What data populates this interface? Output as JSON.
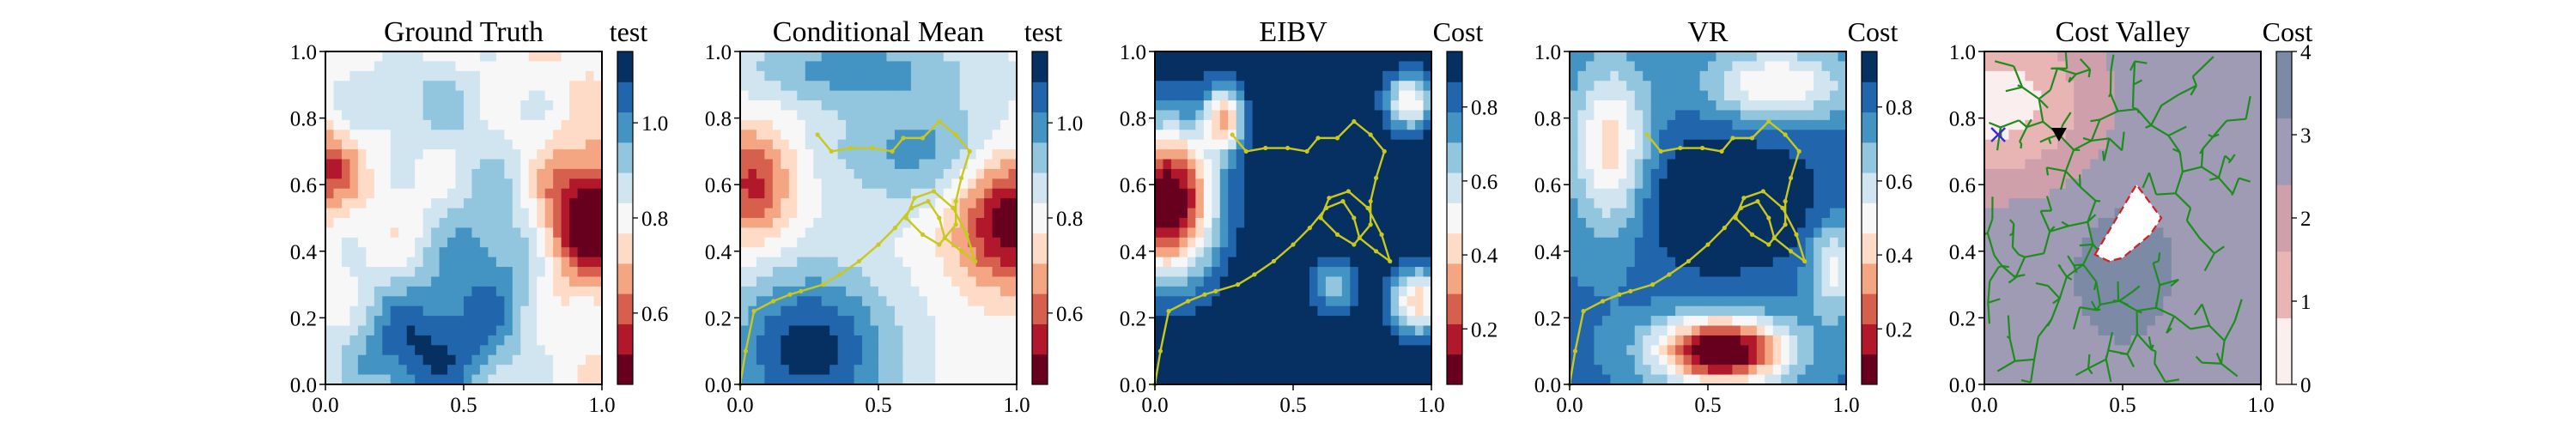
{
  "panels": [
    {
      "title": "Ground Truth",
      "cbar_label": "test",
      "cbar_ticks": [
        "0.6",
        "0.8",
        "1.0"
      ],
      "palette": [
        "#67001f",
        "#b2182b",
        "#d6604d",
        "#f4a582",
        "#fddbc7",
        "#f7f7f7",
        "#d1e5f0",
        "#92c5de",
        "#4393c3",
        "#2166ac",
        "#053061"
      ],
      "overlay": "none"
    },
    {
      "title": "Conditional Mean",
      "cbar_label": "test",
      "cbar_ticks": [
        "0.6",
        "0.8",
        "1.0"
      ],
      "palette": [
        "#67001f",
        "#b2182b",
        "#d6604d",
        "#f4a582",
        "#fddbc7",
        "#f7f7f7",
        "#d1e5f0",
        "#92c5de",
        "#4393c3",
        "#2166ac",
        "#053061"
      ],
      "overlay": "path"
    },
    {
      "title": "EIBV",
      "cbar_label": "Cost",
      "cbar_ticks": [
        "0.2",
        "0.4",
        "0.6",
        "0.8"
      ],
      "palette": [
        "#67001f",
        "#b2182b",
        "#d6604d",
        "#f4a582",
        "#fddbc7",
        "#f7f7f7",
        "#d1e5f0",
        "#92c5de",
        "#4393c3",
        "#2166ac",
        "#053061"
      ],
      "overlay": "path"
    },
    {
      "title": "VR",
      "cbar_label": "Cost",
      "cbar_ticks": [
        "0.2",
        "0.4",
        "0.6",
        "0.8"
      ],
      "palette": [
        "#67001f",
        "#b2182b",
        "#d6604d",
        "#f4a582",
        "#fddbc7",
        "#f7f7f7",
        "#d1e5f0",
        "#92c5de",
        "#4393c3",
        "#2166ac",
        "#053061"
      ],
      "overlay": "path"
    },
    {
      "title": "Cost Valley",
      "cbar_label": "Cost",
      "cbar_ticks": [
        "0",
        "1",
        "2",
        "3",
        "4"
      ],
      "palette": [
        "#fbeeee",
        "#e8b4b4",
        "#cfa0ab",
        "#a09bb4",
        "#7d8aa6"
      ],
      "overlay": "rrt"
    }
  ],
  "axes": {
    "x_ticks": [
      "0.0",
      "0.5",
      "1.0"
    ],
    "y_ticks": [
      "0.0",
      "0.2",
      "0.4",
      "0.6",
      "0.8",
      "1.0"
    ],
    "xlim": [
      0,
      1
    ],
    "ylim": [
      0,
      1
    ]
  },
  "chart_data": [
    {
      "type": "heatmap",
      "title": "Ground Truth",
      "colorbar_label": "test",
      "colorbar_range": [
        0.45,
        1.15
      ],
      "colorbar_ticks": [
        0.6,
        0.8,
        1.0
      ],
      "xlim": [
        0,
        1
      ],
      "ylim": [
        0,
        1
      ]
    },
    {
      "type": "heatmap",
      "title": "Conditional Mean",
      "colorbar_label": "test",
      "colorbar_range": [
        0.45,
        1.15
      ],
      "colorbar_ticks": [
        0.6,
        0.8,
        1.0
      ],
      "xlim": [
        0,
        1
      ],
      "ylim": [
        0,
        1
      ],
      "path_color": "#c8c81e",
      "path": [
        [
          0.0,
          0.0
        ],
        [
          0.02,
          0.1
        ],
        [
          0.05,
          0.22
        ],
        [
          0.12,
          0.25
        ],
        [
          0.18,
          0.27
        ],
        [
          0.22,
          0.28
        ],
        [
          0.3,
          0.3
        ],
        [
          0.36,
          0.33
        ],
        [
          0.43,
          0.37
        ],
        [
          0.5,
          0.42
        ],
        [
          0.56,
          0.47
        ],
        [
          0.62,
          0.53
        ],
        [
          0.68,
          0.55
        ],
        [
          0.72,
          0.5
        ],
        [
          0.74,
          0.44
        ],
        [
          0.8,
          0.4
        ],
        [
          0.85,
          0.37
        ],
        [
          0.82,
          0.45
        ],
        [
          0.77,
          0.53
        ],
        [
          0.7,
          0.58
        ],
        [
          0.63,
          0.56
        ],
        [
          0.6,
          0.5
        ],
        [
          0.66,
          0.45
        ],
        [
          0.72,
          0.42
        ],
        [
          0.78,
          0.48
        ],
        [
          0.78,
          0.55
        ],
        [
          0.8,
          0.62
        ],
        [
          0.83,
          0.7
        ],
        [
          0.78,
          0.75
        ],
        [
          0.72,
          0.79
        ],
        [
          0.66,
          0.74
        ],
        [
          0.59,
          0.74
        ],
        [
          0.55,
          0.7
        ],
        [
          0.48,
          0.71
        ],
        [
          0.4,
          0.71
        ],
        [
          0.33,
          0.7
        ],
        [
          0.28,
          0.75
        ]
      ]
    },
    {
      "type": "heatmap",
      "title": "EIBV",
      "colorbar_label": "Cost",
      "colorbar_range": [
        0.05,
        0.95
      ],
      "colorbar_ticks": [
        0.2,
        0.4,
        0.6,
        0.8
      ],
      "xlim": [
        0,
        1
      ],
      "ylim": [
        0,
        1
      ],
      "path_color": "#c8c81e",
      "path": [
        [
          0.0,
          0.0
        ],
        [
          0.02,
          0.1
        ],
        [
          0.05,
          0.22
        ],
        [
          0.12,
          0.25
        ],
        [
          0.18,
          0.27
        ],
        [
          0.22,
          0.28
        ],
        [
          0.3,
          0.3
        ],
        [
          0.36,
          0.33
        ],
        [
          0.43,
          0.37
        ],
        [
          0.5,
          0.42
        ],
        [
          0.56,
          0.47
        ],
        [
          0.62,
          0.53
        ],
        [
          0.68,
          0.55
        ],
        [
          0.72,
          0.5
        ],
        [
          0.74,
          0.44
        ],
        [
          0.8,
          0.4
        ],
        [
          0.85,
          0.37
        ],
        [
          0.82,
          0.45
        ],
        [
          0.77,
          0.53
        ],
        [
          0.7,
          0.58
        ],
        [
          0.63,
          0.56
        ],
        [
          0.6,
          0.5
        ],
        [
          0.66,
          0.45
        ],
        [
          0.72,
          0.42
        ],
        [
          0.78,
          0.48
        ],
        [
          0.78,
          0.55
        ],
        [
          0.8,
          0.62
        ],
        [
          0.83,
          0.7
        ],
        [
          0.78,
          0.75
        ],
        [
          0.72,
          0.79
        ],
        [
          0.66,
          0.74
        ],
        [
          0.59,
          0.74
        ],
        [
          0.55,
          0.7
        ],
        [
          0.48,
          0.71
        ],
        [
          0.4,
          0.71
        ],
        [
          0.33,
          0.7
        ],
        [
          0.28,
          0.75
        ]
      ]
    },
    {
      "type": "heatmap",
      "title": "VR",
      "colorbar_label": "Cost",
      "colorbar_range": [
        0.05,
        0.95
      ],
      "colorbar_ticks": [
        0.2,
        0.4,
        0.6,
        0.8
      ],
      "xlim": [
        0,
        1
      ],
      "ylim": [
        0,
        1
      ],
      "path_color": "#c8c81e",
      "path": [
        [
          0.0,
          0.0
        ],
        [
          0.02,
          0.1
        ],
        [
          0.05,
          0.22
        ],
        [
          0.12,
          0.25
        ],
        [
          0.18,
          0.27
        ],
        [
          0.22,
          0.28
        ],
        [
          0.3,
          0.3
        ],
        [
          0.36,
          0.33
        ],
        [
          0.43,
          0.37
        ],
        [
          0.5,
          0.42
        ],
        [
          0.56,
          0.47
        ],
        [
          0.62,
          0.53
        ],
        [
          0.68,
          0.55
        ],
        [
          0.72,
          0.5
        ],
        [
          0.74,
          0.44
        ],
        [
          0.8,
          0.4
        ],
        [
          0.85,
          0.37
        ],
        [
          0.82,
          0.45
        ],
        [
          0.77,
          0.53
        ],
        [
          0.7,
          0.58
        ],
        [
          0.63,
          0.56
        ],
        [
          0.6,
          0.5
        ],
        [
          0.66,
          0.45
        ],
        [
          0.72,
          0.42
        ],
        [
          0.78,
          0.48
        ],
        [
          0.78,
          0.55
        ],
        [
          0.8,
          0.62
        ],
        [
          0.83,
          0.7
        ],
        [
          0.78,
          0.75
        ],
        [
          0.72,
          0.79
        ],
        [
          0.66,
          0.74
        ],
        [
          0.59,
          0.74
        ],
        [
          0.55,
          0.7
        ],
        [
          0.48,
          0.71
        ],
        [
          0.4,
          0.71
        ],
        [
          0.33,
          0.7
        ],
        [
          0.28,
          0.75
        ]
      ]
    },
    {
      "type": "heatmap",
      "title": "Cost Valley",
      "colorbar_label": "Cost",
      "colorbar_range": [
        0,
        4
      ],
      "colorbar_ticks": [
        0,
        1,
        2,
        3,
        4
      ],
      "xlim": [
        0,
        1
      ],
      "ylim": [
        0,
        1
      ],
      "current_location": [
        0.27,
        0.75
      ],
      "target_marker": [
        0.05,
        0.75
      ],
      "obstacle_polygon": [
        [
          0.4,
          0.39
        ],
        [
          0.55,
          0.6
        ],
        [
          0.64,
          0.5
        ],
        [
          0.6,
          0.45
        ],
        [
          0.5,
          0.38
        ],
        [
          0.45,
          0.37
        ]
      ]
    }
  ]
}
